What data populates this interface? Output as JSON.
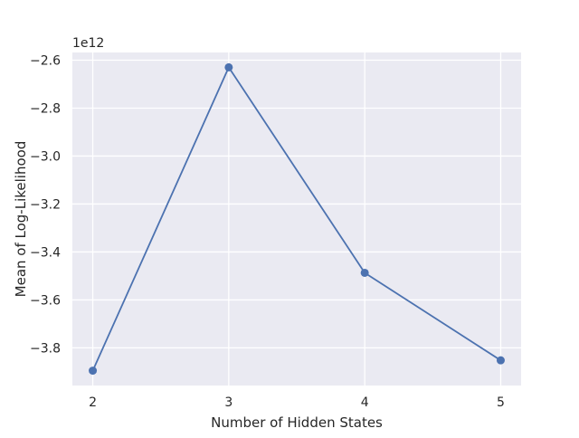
{
  "chart_data": {
    "type": "line",
    "title": "",
    "xlabel": "Number of Hidden States",
    "ylabel": "Mean of Log-Likelihood",
    "offset_label": "1e12",
    "x": [
      2,
      3,
      4,
      5
    ],
    "y": [
      -3.895,
      -2.63,
      -3.487,
      -3.852
    ],
    "y_unit_multiplier": 1000000000000.0,
    "xlim": [
      1.85,
      5.15
    ],
    "ylim": [
      -3.957,
      -2.568
    ],
    "xticks": [
      2,
      3,
      4,
      5
    ],
    "xtick_labels": [
      "2",
      "3",
      "4",
      "5"
    ],
    "yticks": [
      -2.6,
      -2.8,
      -3.0,
      -3.2,
      -3.4,
      -3.6,
      -3.8
    ],
    "ytick_labels": [
      "−2.6",
      "−2.8",
      "−3.0",
      "−3.2",
      "−3.4",
      "−3.6",
      "−3.8"
    ],
    "grid": true,
    "marker": "circle",
    "line_color": "#4c72b0",
    "plot_background": "#eaeaf2",
    "grid_color": "#ffffff"
  }
}
